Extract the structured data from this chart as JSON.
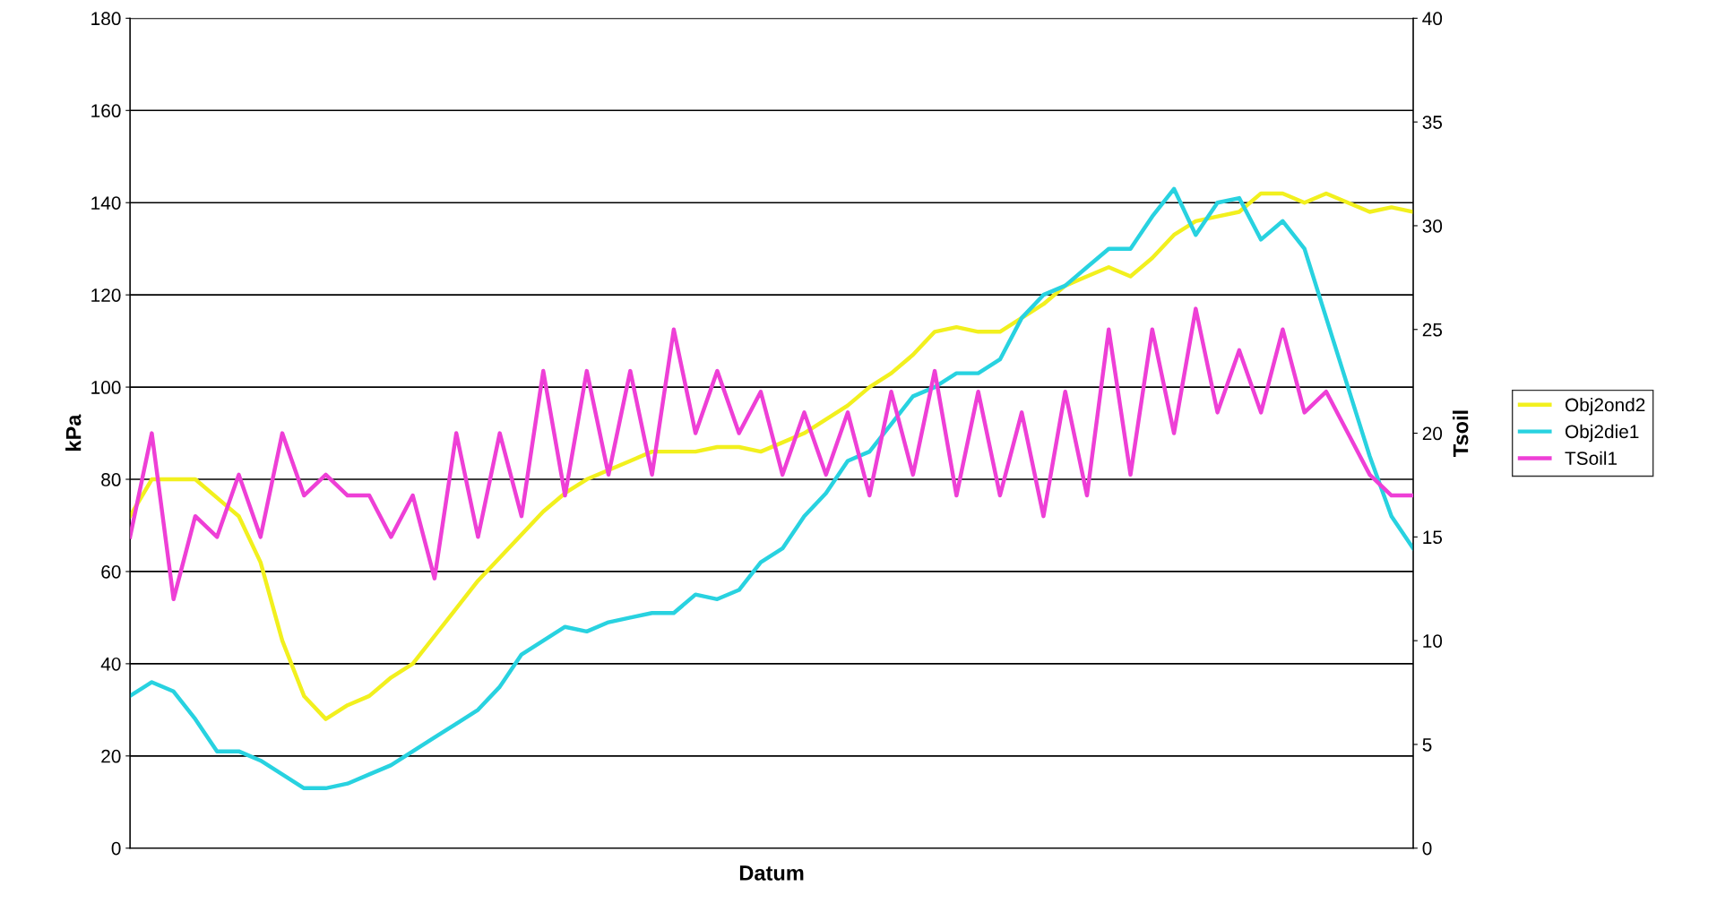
{
  "chart_data": {
    "type": "line",
    "xlabel": "Datum",
    "ylabel": "kPa",
    "y2label": "Tsoil",
    "categories": [
      null,
      null,
      null,
      null,
      null,
      null,
      null,
      null,
      null,
      null,
      null,
      null,
      null,
      null,
      null,
      null,
      null,
      null,
      null,
      null,
      null,
      null,
      null,
      null,
      null,
      null,
      null,
      null,
      null,
      null,
      null,
      null,
      null,
      null,
      null,
      null,
      null,
      null,
      null,
      null,
      null,
      null,
      null,
      null,
      null,
      null,
      null,
      null,
      null,
      null,
      null,
      null,
      null,
      null,
      null,
      null,
      null,
      null,
      null,
      null
    ],
    "series": [
      {
        "name": "Obj2ond2",
        "color": "#f2f01e",
        "values": [
          72,
          80,
          80,
          80,
          76,
          72,
          62,
          45,
          33,
          28,
          31,
          33,
          37,
          40,
          46,
          52,
          58,
          63,
          68,
          73,
          77,
          80,
          82,
          84,
          86,
          86,
          86,
          87,
          87,
          86,
          88,
          90,
          93,
          96,
          100,
          103,
          107,
          112,
          113,
          112,
          112,
          115,
          118,
          122,
          124,
          126,
          124,
          128,
          133,
          136,
          137,
          138,
          142,
          142,
          140,
          142,
          140,
          138,
          139,
          138
        ]
      },
      {
        "name": "Obj2die1",
        "color": "#28d2e0",
        "values": [
          33,
          36,
          34,
          28,
          21,
          21,
          19,
          16,
          13,
          13,
          14,
          16,
          18,
          21,
          24,
          27,
          30,
          35,
          42,
          45,
          48,
          47,
          49,
          50,
          51,
          51,
          55,
          54,
          56,
          62,
          65,
          72,
          77,
          84,
          86,
          92,
          98,
          100,
          103,
          103,
          106,
          115,
          120,
          122,
          126,
          130,
          130,
          137,
          143,
          133,
          140,
          141,
          132,
          136,
          130,
          115,
          100,
          85,
          72,
          65
        ]
      },
      {
        "name": "TSoil1",
        "color": "#ee3fd6",
        "axis": "y2",
        "values": [
          15,
          20,
          12,
          16,
          15,
          18,
          15,
          20,
          17,
          18,
          17,
          17,
          15,
          17,
          13,
          20,
          15,
          20,
          16,
          23,
          17,
          23,
          18,
          23,
          18,
          25,
          20,
          23,
          20,
          22,
          18,
          21,
          18,
          21,
          17,
          22,
          18,
          23,
          17,
          22,
          17,
          21,
          16,
          22,
          17,
          25,
          18,
          25,
          20,
          26,
          21,
          24,
          21,
          25,
          21,
          22,
          20,
          18,
          17,
          17
        ]
      }
    ],
    "ylim": [
      0,
      180
    ],
    "yticks": [
      0,
      20,
      40,
      60,
      80,
      100,
      120,
      140,
      160,
      180
    ],
    "y2lim": [
      0,
      40
    ],
    "y2ticks": [
      0,
      5,
      10,
      15,
      20,
      25,
      30,
      35,
      40
    ],
    "grid": "y",
    "legend": "right"
  }
}
